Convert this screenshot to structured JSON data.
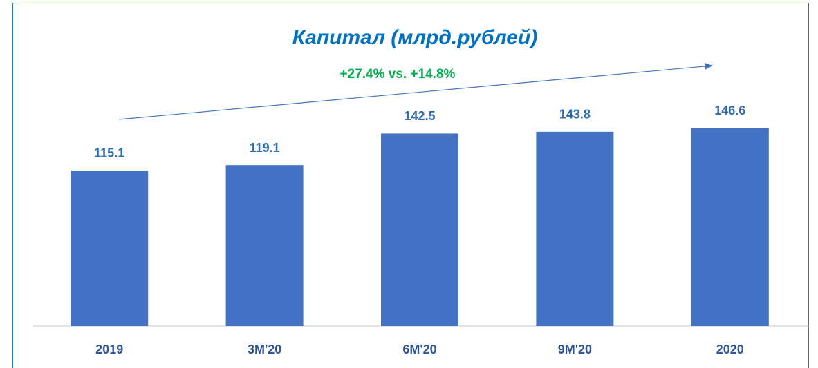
{
  "chart_data": {
    "type": "bar",
    "title": "Капитал (млрд.рублей)",
    "annotation": "+27.4% vs. +14.8%",
    "categories": [
      "2019",
      "3M'20",
      "6M'20",
      "9M'20",
      "2020"
    ],
    "values": [
      115.1,
      119.1,
      142.5,
      143.8,
      146.6
    ],
    "color": "#4472c4"
  }
}
